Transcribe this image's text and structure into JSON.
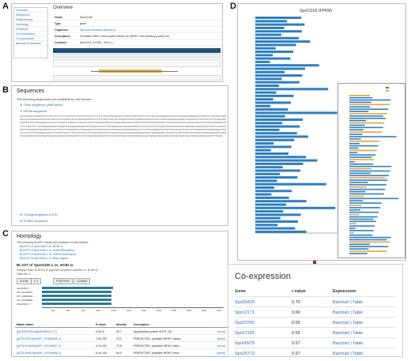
{
  "panel_labels": {
    "a": "A",
    "b": "B",
    "c": "C",
    "d": "D",
    "e": "E"
  },
  "overview": {
    "nav": [
      "Overview",
      "Sequences",
      "Relationships",
      "Homology",
      "GeneFam",
      "GO Annotation",
      "Co-expression",
      "Barchart Expression"
    ],
    "title": "Overview",
    "rows": [
      {
        "k": "Name",
        "v": "Spo01160",
        "link": false
      },
      {
        "k": "Type",
        "v": "gene",
        "link": false
      },
      {
        "k": "Organism",
        "v": "Spinacia oleracea (Spinach)",
        "link": true
      },
      {
        "k": "Description",
        "v": "Probable WRKY transcription factor 42 (WRKY Zinc-binding protein 42)",
        "link": false
      },
      {
        "k": "Location",
        "v": "SpoChr3_01:206 - 6310 (-)",
        "link": false
      }
    ]
  },
  "sequences": {
    "title": "Sequences",
    "intro": "The following sequences are available for this feature:",
    "links": [
      "Gene sequence (with intron)",
      "mRNA sequence",
      "Coding sequence (CDS)",
      "Protein sequence"
    ],
    "seq": "GACTTCAGACTTGCAAATATTTCTTCTTCTTCCCTTTTCTCCTCTTTTCTCTTTTCTCCTCTTTTCCCTCTCTAATATGCCTCTTTCGTCATTGTTTTCTCTCTTCTTACTACCAACGAGCACTGCTGCACCCAACCAAAACCCACTTTATACTTTCCCAGTCATGGCAACCCATTACGCGAAACACTCTACCTACCTCCTCATTAAATCTTCTCCCACCCACCATTTCTTCTTCTAATCCTACTCATTTGAATTACCACATTCGAACATCGATGTTTCACTTTGGATCGTAAATCGATAGATCAAAAAGTTTTTACCTATTCGTTTCCACTAGGTTGAAATATTCCTCACCAAGAAACCCTCTCATTCCAGTCTCAGCGCCCCTGGCCTCTCATTTTGCCACATAGGCTGCTGCAATAAAGCTCGGCTCGGCTTCCTCCTATCATCAATTCGCTTCACCATCTCCATCCTCCACAACAAGCCCCCCTCACCACGACAAGGCTCCTCCTCAGATTCCTCACTCGAGGCGAGGCCCTCGGACTCGCAAAAAAGACGGTCACTCACGACCCAACCTCTACTGAAGTCGACAACAACGATAAACCTCCAATCCCCACCCCCACACTGCTCACCAAACGGTTCAGGCGGATTGAACACTGTCCGTGTCCAAGATGTAGCTTCGATGGAGATCAGTAGAAATCCCCCTTCCTTTTTAGCAAACCTTTGTGCGACACCACTCAATTCAATTCACCGAAGTATTAGGAAGAGCCAACTTTGTTTCCCAAAAGTTGCCTGCCATATATAAATTTTCGTCATTGTGAGATACTATAGATCAAAACCCGCTCCTCTCATTTTTCTAGGACTACACGCTTCGGTCTTCGCTTCTTGTTGCACTCCTCTTCAAAGATGGTTCTGTTTAGGCTGCACAACAACACAATGGAAGAATGAATTGGAAAGGAATTACAGATTCTTCATTGCTCAAATCCAAACTAATAGAAAAAGTTGTTAAGTTGATGATGGTGAGTGTATTGAGTTGGACCAAAGACGGCATTGGCGGTCTTCCTACAAGCCTGCGAAGCCTTCGCCGCGCTCGTAGCTCCGTATCCGGATCCAGGTCAGTGGCTGCACAACGCTGCCAGCCTGATGAACGTATGCAACGTCGACGATATTTCGAAC"
  },
  "homology": {
    "title": "Homology",
    "intro": "The following BLAST results are available for this feature:",
    "links": [
      "BLASTP of Spo01160.1 vs. NCBI nr",
      "BLASTP of Spo01160.1 vs. UniProt/SwissProt",
      "BLASTP of Spo01160.1 vs. TAIR10 Arabidopsis",
      "BLASTP of Spo01160.1 vs. Beta vulgaris"
    ],
    "subtitle": "BLAST of Spo01160.1 vs. NCBI nr",
    "analysis": "Analysis Date: 2015-06-29 (Spinach sequence peptides vs. NCBI nr)",
    "total_hits": "Total Hits: 5",
    "buttons": [
      "ZOOM",
      "X 1",
      "POSITION",
      "COMMA"
    ],
    "track_labels": [
      "Spo01160.1",
      "XP_021908571",
      "XP_010683291",
      "XP_021908581",
      "KNA03317.1"
    ],
    "axis_ticks": [
      "200",
      "400",
      "600",
      "800",
      "1000",
      "1200",
      "1400",
      "1600",
      "1800",
      "2000",
      "2200",
      "2400"
    ],
    "table_headers": [
      "Match Name",
      "E-value",
      "Identity",
      "Description",
      ""
    ],
    "rows": [
      {
        "name": "gi|1000229203|gb|KNA03317.1|",
        "evalue": "0.0e+0",
        "identity": "99.7",
        "desc": "hypothetical protein SOVF_05...",
        "more": "[more]"
      },
      {
        "name": "gi|731315746|ref|XP_010683291.1|",
        "evalue": "1.5e-230",
        "identity": "73.2",
        "desc": "PREDICTED: probable WRKY transc...",
        "more": "[more]"
      },
      {
        "name": "gi|731319483|ref|XP_021908571.1|",
        "evalue": "3.7e-231",
        "identity": "72.8",
        "desc": "PREDICTED: probable WRKY trans...",
        "more": "[more]"
      },
      {
        "name": "gi|731299875|ref|XP_021908581.1|",
        "evalue": "6.1e-145",
        "identity": "54.5",
        "desc": "PREDICTED: probable WRKY trans...",
        "more": "[more]"
      }
    ]
  },
  "barchart": {
    "title": "Spo01160 (FPKM)"
  },
  "coexpression": {
    "title": "Co-expression",
    "headers": [
      "Gene",
      "r value",
      "Expression"
    ],
    "rows": [
      {
        "gene": "Spo20429",
        "r": "0.70",
        "exp": "Barchart | Table"
      },
      {
        "gene": "Spo12171",
        "r": "0.69",
        "exp": "Barchart | Table"
      },
      {
        "gene": "Spo23782",
        "r": "0.69",
        "exp": "Barchart | Table"
      },
      {
        "gene": "Spo27201",
        "r": "0.69",
        "exp": "Barchart | Table"
      },
      {
        "gene": "Spo00979",
        "r": "0.67",
        "exp": "Barchart | Table"
      },
      {
        "gene": "Spo25772",
        "r": "0.67",
        "exp": "Barchart | Table"
      }
    ]
  },
  "colors": {
    "bar": "#2e7fc0",
    "arrow": "#a3282a",
    "link": "#2a6ab0",
    "navy": "#1f4e79"
  }
}
